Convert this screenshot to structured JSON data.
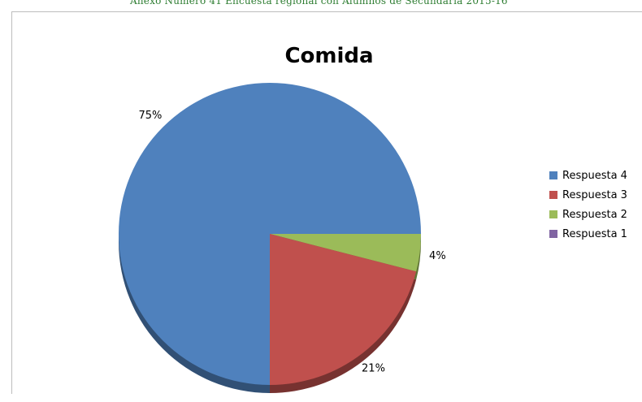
{
  "header_text": "Anexo Número 41 Encuesta regional con Alumnos de Secundaria 2015-16",
  "colors": {
    "respuesta_4": "#4f81bd",
    "respuesta_3": "#c0504d",
    "respuesta_2": "#9bbb59",
    "respuesta_1": "#8064a2",
    "header_green": "#2e7d32"
  },
  "chart_data": {
    "type": "pie",
    "title": "Comida",
    "slices": [
      {
        "name": "Respuesta 4",
        "value": 75,
        "label": "75%"
      },
      {
        "name": "Respuesta 3",
        "value": 21,
        "label": "21%"
      },
      {
        "name": "Respuesta 2",
        "value": 4,
        "label": "4%"
      },
      {
        "name": "Respuesta 1",
        "value": 0,
        "label": ""
      }
    ],
    "legend": [
      "Respuesta 4",
      "Respuesta 3",
      "Respuesta 2",
      "Respuesta 1"
    ],
    "legend_position": "right"
  }
}
